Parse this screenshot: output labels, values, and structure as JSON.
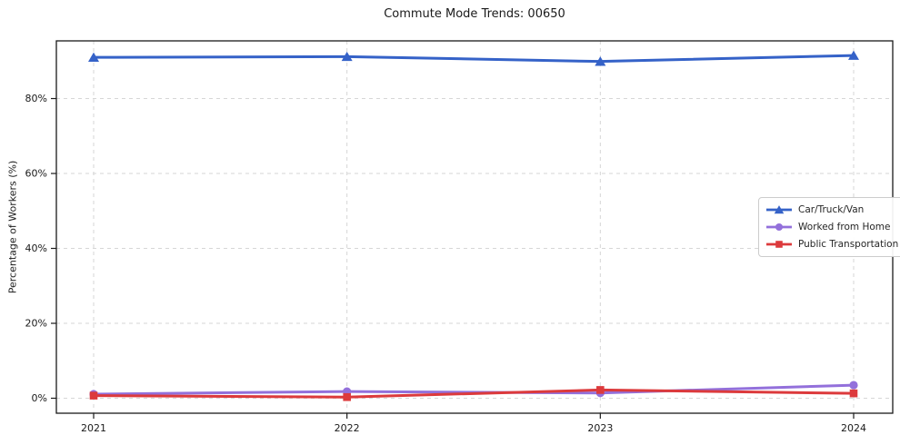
{
  "figure": {
    "background": "#ffffff",
    "text_color": "#1a1a1a",
    "grid_color": "#d6d6d6",
    "spine_color": "#1a1a1a"
  },
  "chart_data": {
    "type": "line",
    "title": "Commute Mode Trends: 00650",
    "xlabel": "",
    "ylabel": "Percentage of Workers (%)",
    "x": [
      2021,
      2022,
      2023,
      2024
    ],
    "series": [
      {
        "name": "Car/Truck/Van",
        "color": "#3562c8",
        "marker": "triangle",
        "values": [
          91.0,
          91.2,
          89.9,
          91.5
        ]
      },
      {
        "name": "Worked from Home",
        "color": "#9370db",
        "marker": "circle",
        "values": [
          1.1,
          1.8,
          1.4,
          3.5
        ]
      },
      {
        "name": "Public Transportation",
        "color": "#dc3a3c",
        "marker": "square",
        "values": [
          0.7,
          0.3,
          2.2,
          1.3
        ]
      }
    ],
    "yticks": [
      0,
      20,
      40,
      60,
      80
    ],
    "ytick_labels": [
      "0%",
      "20%",
      "40%",
      "60%",
      "80%"
    ],
    "ylim": [
      -4,
      95.4
    ],
    "grid": true,
    "grid_style": "dashed",
    "legend_position": "center-right"
  }
}
